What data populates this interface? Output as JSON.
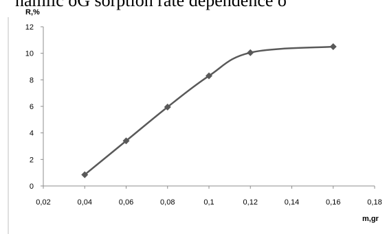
{
  "page": {
    "cropped_text": "namiic oG sorption rate dependence o"
  },
  "chart_data": {
    "type": "line",
    "xlabel": "m,gr",
    "ylabel": "R,%",
    "xlim": [
      0.02,
      0.18
    ],
    "ylim": [
      0,
      12
    ],
    "x_ticks": [
      "0,02",
      "0,04",
      "0,06",
      "0,08",
      "0,1",
      "0,12",
      "0,14",
      "0,16",
      "0,18"
    ],
    "y_ticks": [
      "0",
      "2",
      "4",
      "6",
      "8",
      "10",
      "12"
    ],
    "series": [
      {
        "x": [
          0.04,
          0.06,
          0.08,
          0.1,
          0.12,
          0.16
        ],
        "y": [
          0.85,
          3.4,
          5.95,
          8.3,
          10.05,
          10.5
        ],
        "color": "#595959",
        "marker": "diamond"
      }
    ],
    "grid": false,
    "smooth": true
  }
}
